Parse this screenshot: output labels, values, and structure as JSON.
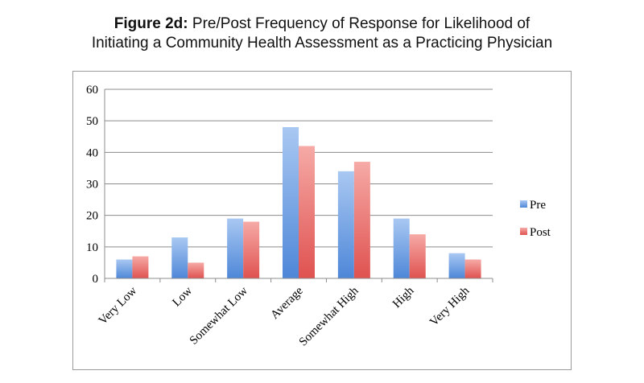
{
  "title": {
    "prefix": "Figure 2d:",
    "line1": "Pre/Post Frequency of Response for Likelihood of",
    "line2": "Initiating a Community Health Assessment as a Practicing Physician"
  },
  "chart_data": {
    "type": "bar",
    "categories": [
      "Very Low",
      "Low",
      "Somewhat Low",
      "Average",
      "Somewhat High",
      "High",
      "Very High"
    ],
    "series": [
      {
        "name": "Pre",
        "values": [
          6,
          13,
          19,
          48,
          34,
          19,
          8
        ],
        "color": "#6aa0e6"
      },
      {
        "name": "Post",
        "values": [
          7,
          5,
          18,
          42,
          37,
          14,
          6
        ],
        "color": "#ef7b79"
      }
    ],
    "ylim": [
      0,
      60
    ],
    "yticks": [
      0,
      10,
      20,
      30,
      40,
      50,
      60
    ],
    "grid": true,
    "legend": "right"
  }
}
